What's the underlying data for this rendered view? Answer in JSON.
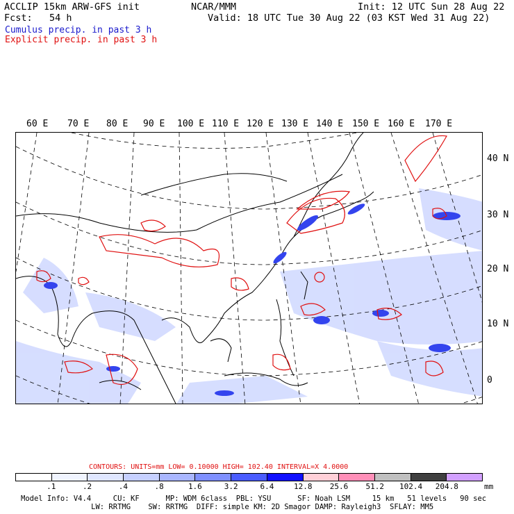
{
  "header": {
    "left_line1": "ACCLIP 15km ARW-GFS init",
    "left_line2": "Fcst:   54 h",
    "center": "NCAR/MMM",
    "right_line1": "Init: 12 UTC Sun 28 Aug 22",
    "right_line2": "Valid: 18 UTC Tue 30 Aug 22 (03 KST Wed 31 Aug 22)"
  },
  "legend": {
    "cumulus": "Cumulus precip. in past 3 h",
    "explicit": "Explicit precip. in past 3 h",
    "cumulus_color": "#1a1acc",
    "explicit_color": "#e01010"
  },
  "map": {
    "lon_labels": [
      "60 E",
      "70 E",
      "80 E",
      "90 E",
      "100 E",
      "110 E",
      "120 E",
      "130 E",
      "140 E",
      "150 E",
      "160 E",
      "170 E"
    ],
    "lat_labels": [
      "40 N",
      "30 N",
      "20 N",
      "10 N",
      "0"
    ]
  },
  "contours": {
    "text": "CONTOURS:  UNITS=mm  LOW= 0.10000      HIGH=  102.40      INTERVAL=X  4.0000"
  },
  "colorbar": {
    "colors": [
      "#ffffff",
      "#f0f4ff",
      "#dfe6ff",
      "#c6d0ff",
      "#a9b6ff",
      "#7f90ff",
      "#4a5cff",
      "#1010ff",
      "#ffd0d8",
      "#ff8fb8",
      "#c0c0c0",
      "#404040",
      "#d2a0ff"
    ],
    "labels": [
      ".1",
      ".2",
      ".4",
      ".8",
      "1.6",
      "3.2",
      "6.4",
      "12.8",
      "25.6",
      "51.2",
      "102.4",
      "204.8"
    ],
    "unit": "mm"
  },
  "footer": {
    "line1": "Model Info: V4.4     CU: KF      MP: WDM 6class  PBL: YSU      SF: Noah LSM     15 km   51 levels   90 sec",
    "line2": "                LW: RRTMG    SW: RRTMG  DIFF: simple KM: 2D Smagor DAMP: Rayleigh3  SFLAY: MM5"
  }
}
